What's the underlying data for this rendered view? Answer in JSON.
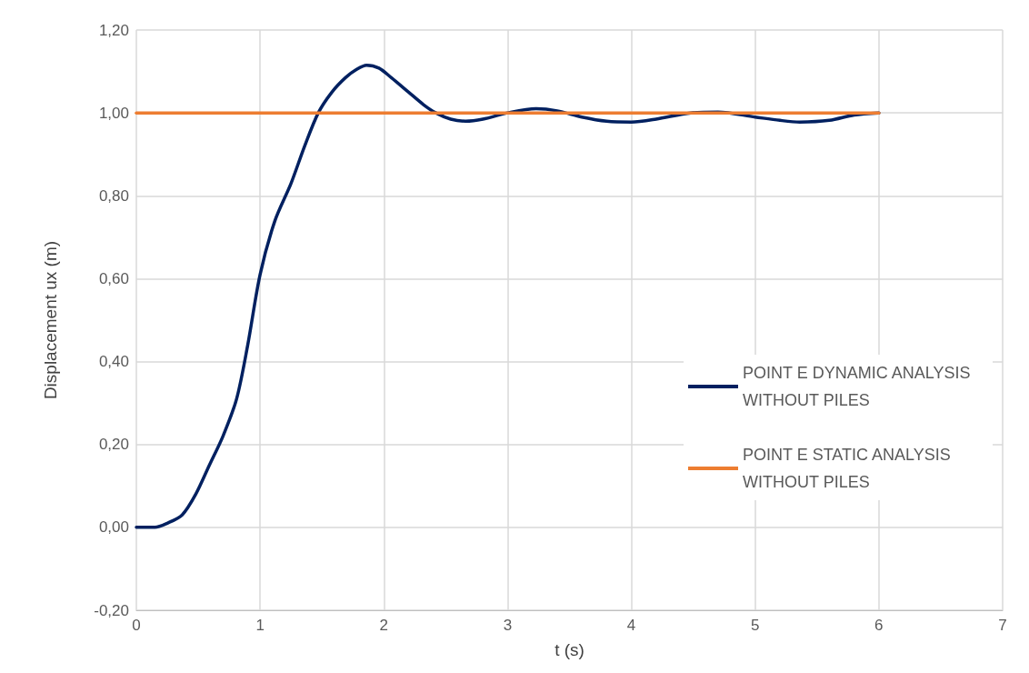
{
  "chart_data": {
    "type": "line",
    "xlabel": "t (s)",
    "ylabel": "Displacement ux (m)",
    "xlim": [
      0,
      7
    ],
    "xticks": [
      0,
      1,
      2,
      3,
      4,
      5,
      6,
      7
    ],
    "ylim": [
      -0.2,
      1.2
    ],
    "yticks": [
      {
        "value": -0.2,
        "label": "-0,20"
      },
      {
        "value": 0,
        "label": "0,00"
      },
      {
        "value": 0.2,
        "label": "0,20"
      },
      {
        "value": 0.4,
        "label": "0,40"
      },
      {
        "value": 0.6,
        "label": "0,60"
      },
      {
        "value": 0.8,
        "label": "0,80"
      },
      {
        "value": 1,
        "label": "1,00"
      },
      {
        "value": 1.2,
        "label": "1,20"
      }
    ],
    "grid": true,
    "legend": "right",
    "marker": "none",
    "line_style": "solid",
    "series": [
      {
        "name": "POINT E DYNAMIC ANALYSIS WITHOUT PILES",
        "color": "#002060",
        "x": [
          0,
          0.15,
          0.25,
          0.37,
          0.48,
          0.59,
          0.7,
          0.81,
          0.9,
          1,
          1.12,
          1.25,
          1.36,
          1.47,
          1.58,
          1.69,
          1.78,
          1.86,
          1.96,
          2.06,
          2.2,
          2.32,
          2.42,
          2.54,
          2.66,
          2.8,
          3,
          3.23,
          3.4,
          3.6,
          3.8,
          4,
          4.2,
          4.48,
          4.7,
          5,
          5.2,
          5.36,
          5.6,
          5.8,
          6
        ],
        "values": [
          0,
          0,
          0.01,
          0.03,
          0.08,
          0.15,
          0.22,
          0.31,
          0.44,
          0.61,
          0.74,
          0.83,
          0.92,
          1.0,
          1.05,
          1.085,
          1.105,
          1.115,
          1.108,
          1.085,
          1.05,
          1.02,
          1.0,
          0.985,
          0.98,
          0.985,
          1.0,
          1.01,
          1.005,
          0.99,
          0.98,
          0.978,
          0.985,
          1.0,
          1.002,
          0.99,
          0.982,
          0.978,
          0.982,
          0.995,
          1.0
        ]
      },
      {
        "name": "POINT E STATIC ANALYSIS WITHOUT PILES",
        "color": "#ed7d31",
        "x": [
          0,
          6
        ],
        "values": [
          1,
          1
        ]
      }
    ]
  }
}
